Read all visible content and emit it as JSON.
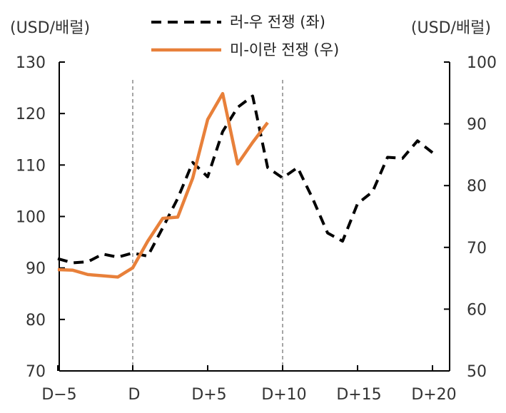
{
  "chart_data": {
    "type": "line",
    "left_axis_unit": "(USD/배럴)",
    "right_axis_unit": "(USD/배럴)",
    "x_tick_labels": [
      "D−5",
      "D",
      "D+5",
      "D+10",
      "D+15",
      "D+20"
    ],
    "x_tick_days": [
      -5,
      0,
      5,
      10,
      15,
      20
    ],
    "x_range": [
      -5,
      21
    ],
    "left_ylim": [
      70,
      130
    ],
    "left_ticks": [
      70,
      80,
      90,
      100,
      110,
      120,
      130
    ],
    "right_ylim": [
      50,
      100
    ],
    "right_ticks": [
      50,
      60,
      70,
      80,
      90,
      100
    ],
    "reference_lines_x": [
      0,
      10
    ],
    "grid": false,
    "legend_position": "top-center",
    "series": [
      {
        "name": "러-우 전쟁 (좌)",
        "axis": "left",
        "style": "dashed",
        "color": "#000000",
        "x": [
          -5,
          -4,
          -3,
          -2,
          -1,
          0,
          1,
          2,
          3,
          4,
          5,
          6,
          7,
          8,
          9,
          10,
          11,
          12,
          13,
          14,
          15,
          16,
          17,
          18,
          19,
          20
        ],
        "y": [
          91.8,
          91.0,
          91.2,
          92.7,
          92.1,
          92.9,
          92.3,
          97.8,
          103.5,
          110.5,
          107.7,
          116.5,
          121.2,
          123.4,
          109.5,
          107.5,
          109.5,
          103.5,
          96.8,
          95.2,
          102.5,
          104.8,
          111.5,
          111.3,
          114.7,
          112.4
        ]
      },
      {
        "name": "미-이란 전쟁 (우)",
        "axis": "right",
        "style": "solid",
        "color": "#E8803A",
        "x": [
          -5,
          -4,
          -3,
          -2,
          -1,
          0,
          1,
          2,
          3,
          4,
          5,
          6,
          7,
          8,
          9
        ],
        "y": [
          66.4,
          66.3,
          65.6,
          65.4,
          65.2,
          66.7,
          71.0,
          74.7,
          74.9,
          81.2,
          90.7,
          94.9,
          83.5,
          87.0,
          90.2
        ]
      }
    ]
  }
}
